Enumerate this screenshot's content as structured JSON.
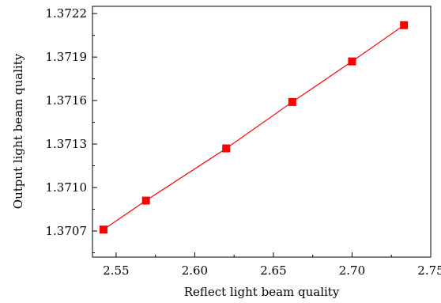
{
  "chart_data": {
    "type": "line",
    "title": "",
    "xlabel": "Reflect light beam quality",
    "ylabel": "Output light beam quality",
    "xlim": [
      2.535,
      2.75
    ],
    "ylim": [
      1.37052,
      1.37225
    ],
    "xticks": [
      2.55,
      2.6,
      2.65,
      2.7,
      2.75
    ],
    "xtick_labels": [
      "2.55",
      "2.60",
      "2.65",
      "2.70",
      "2.75"
    ],
    "yticks": [
      1.3707,
      1.371,
      1.3713,
      1.3716,
      1.3719,
      1.3722
    ],
    "ytick_labels": [
      "1.3707",
      "1.3710",
      "1.3713",
      "1.3716",
      "1.3719",
      "1.3722"
    ],
    "grid": false,
    "legend": "none",
    "series": [
      {
        "marker": "square",
        "color": "#ff0000",
        "x": [
          2.542,
          2.569,
          2.62,
          2.662,
          2.7,
          2.733
        ],
        "y": [
          1.37071,
          1.37091,
          1.37127,
          1.37159,
          1.37187,
          1.37212
        ]
      }
    ]
  }
}
